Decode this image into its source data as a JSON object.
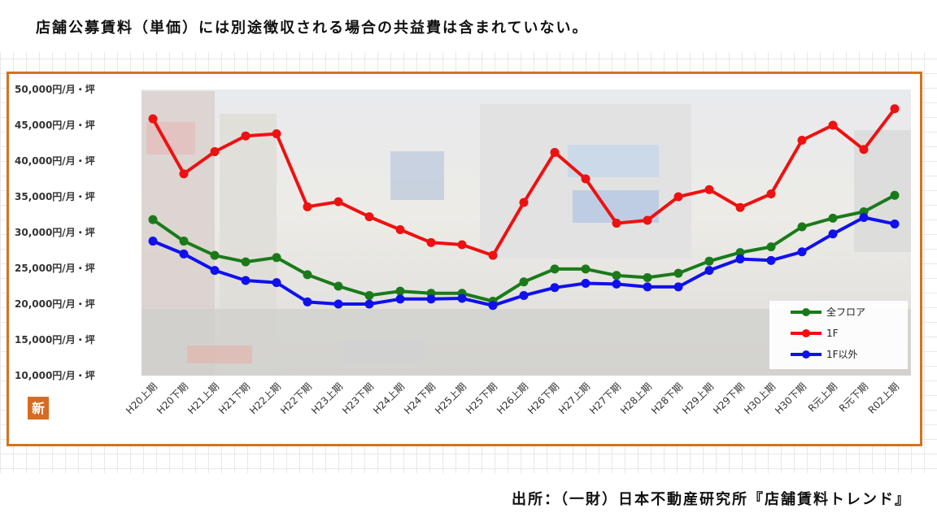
{
  "note": "店舗公募賃料（単価）には別途徴収される場合の共益費は含まれていない。",
  "source": "出所：（一財）日本不動産研究所『店舗賃料トレンド』",
  "logo_text": "新",
  "chart_data": {
    "type": "line",
    "title": "",
    "xlabel": "",
    "ylabel": "",
    "ylim": [
      10000,
      50000
    ],
    "yticks": [
      10000,
      15000,
      20000,
      25000,
      30000,
      35000,
      40000,
      45000,
      50000
    ],
    "ytick_labels": [
      "10,000円/月・坪",
      "15,000円/月・坪",
      "20,000円/月・坪",
      "25,000円/月・坪",
      "30,000円/月・坪",
      "35,000円/月・坪",
      "40,000円/月・坪",
      "45,000円/月・坪",
      "50,000円/月・坪"
    ],
    "categories": [
      "H20上期",
      "H20下期",
      "H21上期",
      "H21下期",
      "H22上期",
      "H22下期",
      "H23上期",
      "H23下期",
      "H24上期",
      "H24下期",
      "H25上期",
      "H25下期",
      "H26上期",
      "H26下期",
      "H27上期",
      "H27下期",
      "H28上期",
      "H28下期",
      "H29上期",
      "H29下期",
      "H30上期",
      "H30下期",
      "R元上期",
      "R元下期",
      "R02上期"
    ],
    "legend_position": "bottom-right",
    "grid": false,
    "series": [
      {
        "name": "全フロア",
        "color": "#1a7a1a",
        "values": [
          31800,
          28800,
          26800,
          25900,
          26500,
          24100,
          22500,
          21200,
          21800,
          21500,
          21500,
          20400,
          23100,
          24900,
          24900,
          24000,
          23700,
          24300,
          26000,
          27200,
          28000,
          30800,
          32000,
          32900,
          35200
        ]
      },
      {
        "name": "1F",
        "color": "#ee1111",
        "values": [
          45900,
          38200,
          41300,
          43500,
          43800,
          33600,
          34300,
          32200,
          30400,
          28600,
          28300,
          26800,
          34200,
          41200,
          37500,
          31300,
          31700,
          35000,
          36000,
          33500,
          35400,
          42900,
          45000,
          41600,
          47300
        ]
      },
      {
        "name": "1F以外",
        "color": "#1010ee",
        "values": [
          28800,
          27000,
          24700,
          23300,
          23000,
          20300,
          20000,
          20000,
          20700,
          20700,
          20800,
          19800,
          21200,
          22300,
          22900,
          22800,
          22400,
          22400,
          24700,
          26300,
          26100,
          27300,
          29800,
          32100,
          31200
        ]
      }
    ]
  }
}
